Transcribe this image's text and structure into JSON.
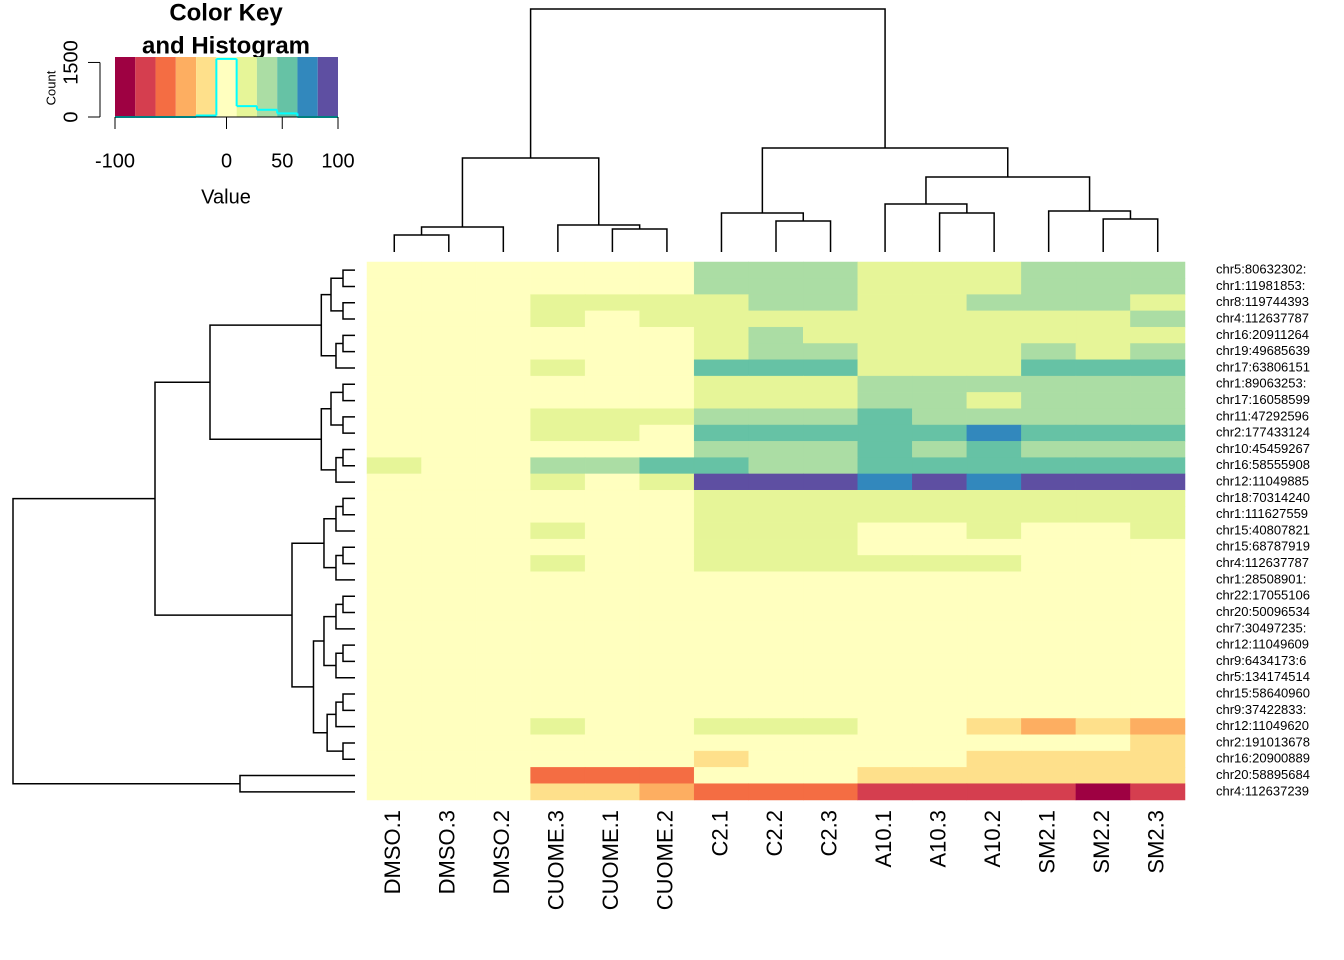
{
  "chart_data": [
    {
      "type": "heatmap",
      "columns": [
        "DMSO.1",
        "DMSO.3",
        "DMSO.2",
        "CUOME.3",
        "CUOME.1",
        "CUOME.2",
        "C2.1",
        "C2.2",
        "C2.3",
        "A10.1",
        "A10.3",
        "A10.2",
        "SM2.1",
        "SM2.2",
        "SM2.3"
      ],
      "rows": [
        "chr5:80632302:",
        "chr1:11981853:",
        "chr8:119744393",
        "chr4:112637787",
        "chr16:20911264",
        "chr19:49685639",
        "chr17:63806151",
        "chr1:89063253:",
        "chr17:16058599",
        "chr11:47292596",
        "chr2:177433124",
        "chr10:45459267",
        "chr16:58555908",
        "chr12:11049885",
        "chr18:70314240",
        "chr1:111627559",
        "chr15:40807821",
        "chr15:68787919",
        "chr4:112637787",
        "chr1:28508901:",
        "chr22:17055106",
        "chr20:50096534",
        "chr7:30497235:",
        "chr12:11049609",
        "chr9:6434173:6",
        "chr5:134174514",
        "chr15:58640960",
        "chr9:37422833:",
        "chr12:11049620",
        "chr2:191013678",
        "chr16:20900889",
        "chr20:58895684",
        "chr4:112637239"
      ],
      "values": [
        [
          0,
          0,
          0,
          0,
          0,
          0,
          40,
          35,
          40,
          25,
          25,
          25,
          40,
          40,
          40
        ],
        [
          0,
          0,
          0,
          0,
          0,
          0,
          35,
          30,
          30,
          25,
          25,
          25,
          40,
          40,
          40
        ],
        [
          0,
          0,
          0,
          20,
          10,
          20,
          25,
          40,
          30,
          20,
          25,
          40,
          30,
          35,
          25
        ],
        [
          0,
          0,
          0,
          10,
          0,
          10,
          25,
          25,
          25,
          20,
          20,
          20,
          25,
          25,
          40
        ],
        [
          0,
          0,
          0,
          0,
          0,
          0,
          20,
          35,
          25,
          25,
          20,
          20,
          20,
          20,
          20
        ],
        [
          0,
          0,
          0,
          0,
          0,
          0,
          25,
          30,
          40,
          20,
          20,
          20,
          35,
          25,
          30
        ],
        [
          0,
          0,
          0,
          10,
          0,
          0,
          60,
          60,
          60,
          25,
          25,
          25,
          55,
          55,
          55
        ],
        [
          0,
          0,
          0,
          0,
          0,
          0,
          20,
          10,
          20,
          40,
          40,
          40,
          40,
          40,
          40
        ],
        [
          0,
          0,
          0,
          0,
          0,
          0,
          10,
          25,
          20,
          40,
          35,
          25,
          40,
          40,
          40
        ],
        [
          0,
          0,
          0,
          20,
          10,
          20,
          35,
          35,
          35,
          50,
          45,
          35,
          40,
          40,
          40
        ],
        [
          0,
          0,
          0,
          15,
          10,
          0,
          60,
          50,
          55,
          55,
          55,
          75,
          55,
          55,
          55
        ],
        [
          0,
          0,
          0,
          0,
          0,
          0,
          40,
          45,
          35,
          50,
          45,
          60,
          40,
          35,
          45
        ],
        [
          10,
          0,
          0,
          40,
          30,
          50,
          55,
          45,
          40,
          60,
          60,
          50,
          50,
          55,
          55
        ],
        [
          0,
          0,
          0,
          10,
          0,
          10,
          95,
          90,
          95,
          80,
          90,
          80,
          90,
          95,
          90
        ],
        [
          0,
          0,
          0,
          0,
          0,
          0,
          20,
          20,
          20,
          25,
          20,
          20,
          25,
          25,
          25
        ],
        [
          0,
          0,
          0,
          0,
          0,
          0,
          15,
          10,
          15,
          20,
          20,
          20,
          20,
          20,
          10
        ],
        [
          0,
          0,
          0,
          10,
          0,
          0,
          20,
          20,
          20,
          0,
          0,
          15,
          0,
          0,
          20
        ],
        [
          0,
          0,
          0,
          0,
          0,
          0,
          25,
          25,
          15,
          0,
          0,
          0,
          0,
          0,
          0
        ],
        [
          0,
          0,
          0,
          15,
          0,
          0,
          20,
          25,
          20,
          20,
          20,
          20,
          0,
          0,
          0
        ],
        [
          0,
          0,
          0,
          0,
          0,
          0,
          0,
          0,
          0,
          0,
          0,
          0,
          0,
          0,
          0
        ],
        [
          0,
          0,
          0,
          0,
          0,
          0,
          0,
          0,
          0,
          0,
          0,
          0,
          0,
          0,
          0
        ],
        [
          0,
          0,
          0,
          0,
          0,
          0,
          0,
          0,
          0,
          0,
          0,
          0,
          0,
          0,
          0
        ],
        [
          0,
          0,
          0,
          0,
          0,
          0,
          0,
          0,
          0,
          0,
          0,
          0,
          0,
          0,
          0
        ],
        [
          0,
          0,
          0,
          0,
          0,
          0,
          0,
          0,
          0,
          0,
          0,
          0,
          0,
          0,
          0
        ],
        [
          0,
          0,
          0,
          0,
          0,
          0,
          0,
          0,
          0,
          0,
          0,
          0,
          0,
          0,
          0
        ],
        [
          0,
          0,
          0,
          0,
          0,
          0,
          0,
          0,
          0,
          0,
          0,
          0,
          0,
          0,
          0
        ],
        [
          0,
          0,
          0,
          0,
          0,
          0,
          0,
          0,
          0,
          0,
          0,
          0,
          0,
          0,
          0
        ],
        [
          0,
          0,
          0,
          0,
          0,
          0,
          0,
          0,
          0,
          0,
          0,
          0,
          0,
          0,
          0
        ],
        [
          0,
          0,
          0,
          10,
          0,
          0,
          15,
          15,
          15,
          0,
          0,
          -20,
          -30,
          -25,
          -30
        ],
        [
          0,
          0,
          0,
          0,
          5,
          0,
          0,
          0,
          0,
          0,
          0,
          0,
          0,
          0,
          -10
        ],
        [
          0,
          0,
          0,
          0,
          0,
          0,
          -10,
          0,
          0,
          0,
          0,
          -15,
          -15,
          -15,
          -15
        ],
        [
          0,
          0,
          0,
          -60,
          -60,
          -60,
          -5,
          -5,
          -5,
          -20,
          -20,
          -20,
          -20,
          -20,
          -20
        ],
        [
          0,
          0,
          0,
          -10,
          -10,
          -30,
          -50,
          -50,
          -60,
          -70,
          -70,
          -80,
          -70,
          -90,
          -70
        ]
      ]
    },
    {
      "type": "histogram",
      "title": [
        "Color Key",
        "and Histogram"
      ],
      "xlabel": "Value",
      "ylabel": "Count",
      "bins": [
        -100,
        -81.82,
        -63.64,
        -45.45,
        -27.27,
        -9.09,
        9.09,
        27.27,
        45.45,
        63.64,
        81.82,
        100
      ],
      "counts": [
        0,
        0,
        0,
        0,
        40,
        1600,
        300,
        200,
        100,
        0,
        0
      ],
      "colors": [
        "#9E0142",
        "#D53E4F",
        "#F46D43",
        "#FDAE61",
        "#FEE08B",
        "#FFFFBF",
        "#E6F598",
        "#ABDDA4",
        "#66C2A5",
        "#3288BD",
        "#5E4FA2"
      ],
      "line_color": "#00FFFF",
      "xlim": [
        -100,
        100
      ],
      "xticks": [
        -100,
        0,
        50,
        100
      ],
      "ylim": [
        0,
        1650
      ],
      "yticks": [
        0,
        1500
      ]
    }
  ]
}
